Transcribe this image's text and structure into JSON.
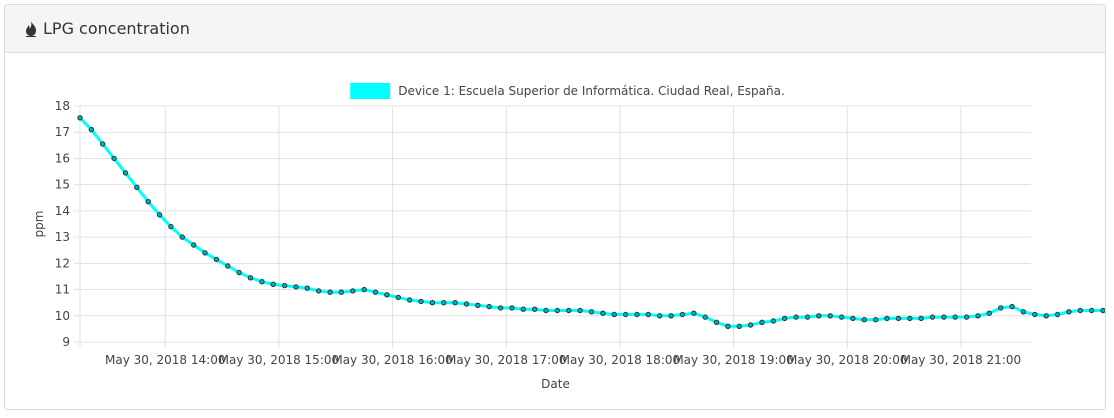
{
  "panel": {
    "title": "LPG concentration",
    "icon": "fire-icon"
  },
  "chart_data": {
    "type": "line",
    "title": "",
    "xlabel": "Date",
    "ylabel": "ppm",
    "ylim": [
      9,
      18
    ],
    "yticks": [
      9,
      10,
      11,
      12,
      13,
      14,
      15,
      16,
      17,
      18
    ],
    "xlim": [
      "May 30, 2018 13:15",
      "May 30, 2018 21:37"
    ],
    "xticks": [
      "May 30, 2018 14:00",
      "May 30, 2018 15:00",
      "May 30, 2018 16:00",
      "May 30, 2018 17:00",
      "May 30, 2018 18:00",
      "May 30, 2018 19:00",
      "May 30, 2018 20:00",
      "May 30, 2018 21:00"
    ],
    "grid": true,
    "legend": "top-center",
    "series": [
      {
        "name": "Device 1: Escuela Superior de Informática. Ciudad Real, España.",
        "color": "#00ffff",
        "point_color": "#00b3b3",
        "start_time": "13:15",
        "interval_minutes": 6,
        "values": [
          17.55,
          17.1,
          16.55,
          16.0,
          15.45,
          14.9,
          14.35,
          13.85,
          13.4,
          13.0,
          12.7,
          12.4,
          12.15,
          11.9,
          11.65,
          11.45,
          11.3,
          11.2,
          11.15,
          11.1,
          11.05,
          10.95,
          10.9,
          10.9,
          10.95,
          11.0,
          10.9,
          10.8,
          10.7,
          10.6,
          10.55,
          10.5,
          10.5,
          10.5,
          10.45,
          10.4,
          10.35,
          10.3,
          10.3,
          10.25,
          10.25,
          10.2,
          10.2,
          10.2,
          10.2,
          10.15,
          10.1,
          10.05,
          10.05,
          10.05,
          10.05,
          10.0,
          10.0,
          10.05,
          10.1,
          9.95,
          9.75,
          9.6,
          9.6,
          9.65,
          9.75,
          9.8,
          9.9,
          9.95,
          9.95,
          10.0,
          10.0,
          9.95,
          9.9,
          9.85,
          9.85,
          9.9,
          9.9,
          9.9,
          9.9,
          9.95,
          9.95,
          9.95,
          9.95,
          10.0,
          10.1,
          10.3,
          10.35,
          10.15,
          10.05,
          10.0,
          10.05,
          10.15,
          10.2,
          10.2,
          10.2,
          10.2,
          10.2,
          10.25,
          10.3,
          10.3
        ]
      }
    ]
  }
}
